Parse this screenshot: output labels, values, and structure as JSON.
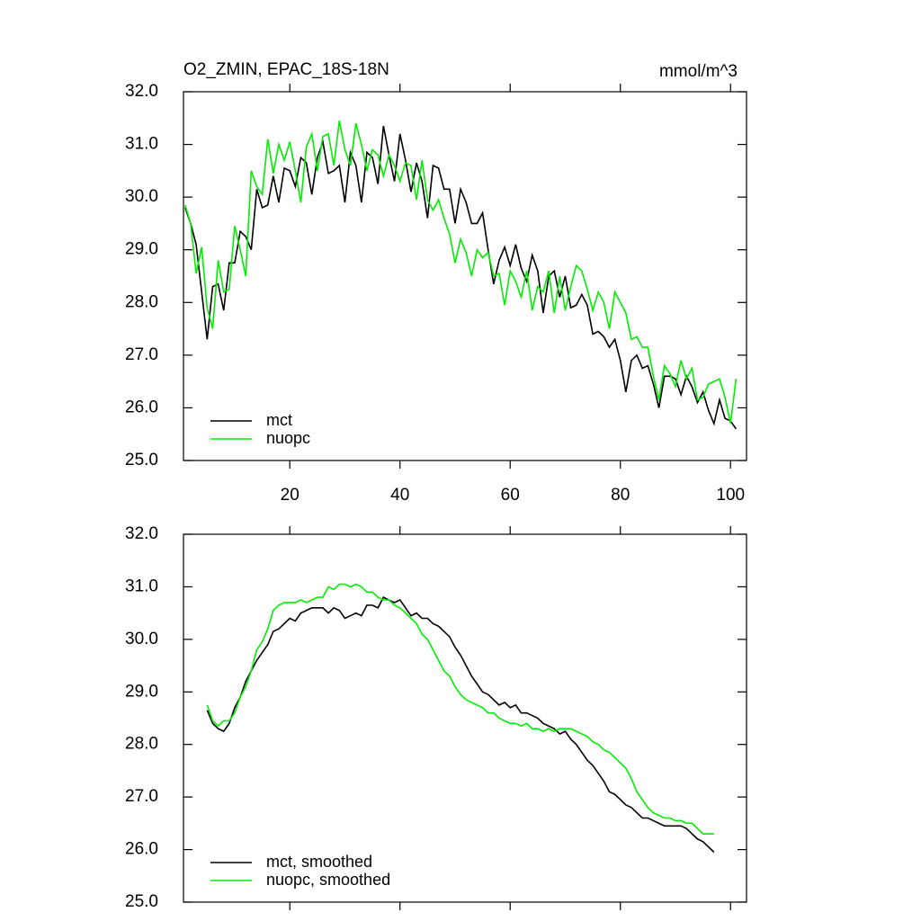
{
  "chart_data": [
    {
      "type": "line",
      "title": "O2_ZMIN, EPAC_18S-18N",
      "subtitle": "mmol/m^3",
      "x": [
        1,
        2,
        3,
        4,
        5,
        6,
        7,
        8,
        9,
        10,
        11,
        12,
        13,
        14,
        15,
        16,
        17,
        18,
        19,
        20,
        21,
        22,
        23,
        24,
        25,
        26,
        27,
        28,
        29,
        30,
        31,
        32,
        33,
        34,
        35,
        36,
        37,
        38,
        39,
        40,
        41,
        42,
        43,
        44,
        45,
        46,
        47,
        48,
        49,
        50,
        51,
        52,
        53,
        54,
        55,
        56,
        57,
        58,
        59,
        60,
        61,
        62,
        63,
        64,
        65,
        66,
        67,
        68,
        69,
        70,
        71,
        72,
        73,
        74,
        75,
        76,
        77,
        78,
        79,
        80,
        81,
        82,
        83,
        84,
        85,
        86,
        87,
        88,
        89,
        90,
        91,
        92,
        93,
        94,
        95,
        96,
        97,
        98,
        99,
        100,
        101
      ],
      "series": [
        {
          "name": "mct",
          "color": "#000000",
          "values": [
            29.8,
            29.5,
            29.1,
            28.2,
            27.3,
            28.3,
            28.35,
            27.85,
            28.75,
            28.75,
            29.35,
            29.25,
            29.0,
            30.15,
            29.8,
            29.85,
            30.4,
            29.9,
            30.55,
            30.5,
            30.2,
            30.75,
            30.65,
            30.05,
            30.75,
            31.05,
            30.45,
            30.5,
            30.6,
            29.9,
            30.85,
            30.6,
            29.9,
            30.85,
            30.75,
            30.25,
            31.35,
            30.8,
            30.3,
            31.2,
            30.7,
            30.1,
            30.65,
            30.3,
            29.6,
            30.6,
            30.55,
            30.15,
            30.15,
            29.5,
            30.15,
            29.9,
            29.5,
            29.5,
            29.7,
            29.0,
            28.35,
            28.8,
            29.05,
            28.7,
            29.1,
            28.65,
            28.4,
            28.9,
            28.6,
            27.8,
            28.5,
            28.6,
            28.1,
            28.5,
            27.9,
            27.95,
            28.15,
            27.95,
            27.4,
            27.45,
            27.35,
            27.15,
            27.3,
            26.9,
            26.3,
            26.9,
            27.0,
            26.75,
            26.8,
            26.45,
            26.0,
            26.6,
            26.6,
            26.55,
            26.25,
            26.6,
            26.4,
            26.1,
            26.3,
            25.95,
            25.7,
            26.15,
            25.8,
            25.75,
            25.6
          ]
        },
        {
          "name": "nuopc",
          "color": "#00ee00",
          "values": [
            29.85,
            29.5,
            28.55,
            29.05,
            27.9,
            27.5,
            28.8,
            28.2,
            28.25,
            29.45,
            29.0,
            28.5,
            30.5,
            30.2,
            30.05,
            31.1,
            30.45,
            31.0,
            30.7,
            31.05,
            30.5,
            29.9,
            30.95,
            31.2,
            30.5,
            31.15,
            31.2,
            30.6,
            31.45,
            30.9,
            30.6,
            31.4,
            31.0,
            30.5,
            30.9,
            30.8,
            30.4,
            30.8,
            30.6,
            30.3,
            30.65,
            30.6,
            29.95,
            30.7,
            29.95,
            29.75,
            29.95,
            29.6,
            29.3,
            28.75,
            29.2,
            28.95,
            28.5,
            29.0,
            28.85,
            28.95,
            28.5,
            28.55,
            27.95,
            28.6,
            28.4,
            28.1,
            28.6,
            27.85,
            28.3,
            28.2,
            28.6,
            27.8,
            28.5,
            27.85,
            28.3,
            28.7,
            28.6,
            28.25,
            27.85,
            28.2,
            28.0,
            27.5,
            28.2,
            28.0,
            27.8,
            27.3,
            27.35,
            27.15,
            27.15,
            26.6,
            26.15,
            26.8,
            26.65,
            26.4,
            26.9,
            26.55,
            26.75,
            26.15,
            26.2,
            26.45,
            26.5,
            26.55,
            26.2,
            25.7,
            26.55
          ]
        }
      ],
      "xlim": [
        0.7,
        102.9
      ],
      "xticks": [
        20,
        40,
        60,
        80,
        100
      ],
      "ylim": [
        25,
        32
      ],
      "yticks": [
        {
          "value": 25,
          "label": "25.0"
        },
        {
          "value": 26,
          "label": "26.0"
        },
        {
          "value": 27,
          "label": "27.0"
        },
        {
          "value": 28,
          "label": "28.0"
        },
        {
          "value": 29,
          "label": "29.0"
        },
        {
          "value": 30,
          "label": "30.0"
        },
        {
          "value": 31,
          "label": "31.0"
        },
        {
          "value": 32,
          "label": "32.0"
        }
      ],
      "legend": "lower left"
    },
    {
      "type": "line",
      "x": [
        1,
        2,
        3,
        4,
        5,
        6,
        7,
        8,
        9,
        10,
        11,
        12,
        13,
        14,
        15,
        16,
        17,
        18,
        19,
        20,
        21,
        22,
        23,
        24,
        25,
        26,
        27,
        28,
        29,
        30,
        31,
        32,
        33,
        34,
        35,
        36,
        37,
        38,
        39,
        40,
        41,
        42,
        43,
        44,
        45,
        46,
        47,
        48,
        49,
        50,
        51,
        52,
        53,
        54,
        55,
        56,
        57,
        58,
        59,
        60,
        61,
        62,
        63,
        64,
        65,
        66,
        67,
        68,
        69,
        70,
        71,
        72,
        73,
        74,
        75,
        76,
        77,
        78,
        79,
        80,
        81,
        82,
        83,
        84,
        85,
        86,
        87,
        88,
        89,
        90,
        91,
        92,
        93,
        94,
        95,
        96,
        97,
        98,
        99,
        100,
        101
      ],
      "series": [
        {
          "name": "mct, smoothed",
          "color": "#000000",
          "values": [
            null,
            null,
            null,
            null,
            28.65,
            28.4,
            28.3,
            28.25,
            28.4,
            28.7,
            28.9,
            29.2,
            29.4,
            29.6,
            29.75,
            29.9,
            30.15,
            30.2,
            30.3,
            30.4,
            30.35,
            30.5,
            30.55,
            30.6,
            30.6,
            30.6,
            30.5,
            30.6,
            30.55,
            30.4,
            30.45,
            30.5,
            30.45,
            30.65,
            30.65,
            30.6,
            30.8,
            30.75,
            30.7,
            30.75,
            30.6,
            30.45,
            30.5,
            30.4,
            30.4,
            30.3,
            30.25,
            30.15,
            30.05,
            29.85,
            29.7,
            29.5,
            29.3,
            29.15,
            29.0,
            28.95,
            28.85,
            28.75,
            28.8,
            28.7,
            28.75,
            28.6,
            28.6,
            28.55,
            28.5,
            28.4,
            28.35,
            28.3,
            28.2,
            28.25,
            28.1,
            28.0,
            27.85,
            27.7,
            27.6,
            27.45,
            27.3,
            27.1,
            27.05,
            26.95,
            26.85,
            26.8,
            26.7,
            26.6,
            26.6,
            26.55,
            26.5,
            26.45,
            26.45,
            26.45,
            26.45,
            26.4,
            26.3,
            26.2,
            26.15,
            26.05,
            25.95,
            null,
            null,
            null,
            null
          ]
        },
        {
          "name": "nuopc, smoothed",
          "color": "#00ee00",
          "values": [
            null,
            null,
            null,
            null,
            28.75,
            28.45,
            28.35,
            28.45,
            28.45,
            28.6,
            28.9,
            29.1,
            29.4,
            29.8,
            29.95,
            30.2,
            30.55,
            30.65,
            30.7,
            30.7,
            30.7,
            30.75,
            30.7,
            30.75,
            30.8,
            30.8,
            31.0,
            30.95,
            31.05,
            31.05,
            31.0,
            31.05,
            31.0,
            30.9,
            30.9,
            30.8,
            30.75,
            30.75,
            30.65,
            30.6,
            30.5,
            30.4,
            30.3,
            30.1,
            30.0,
            29.8,
            29.6,
            29.4,
            29.3,
            29.1,
            28.95,
            28.85,
            28.8,
            28.75,
            28.7,
            28.6,
            28.6,
            28.5,
            28.45,
            28.4,
            28.4,
            28.35,
            28.4,
            28.3,
            28.3,
            28.25,
            28.3,
            28.25,
            28.3,
            28.3,
            28.3,
            28.25,
            28.2,
            28.15,
            28.05,
            28.0,
            27.9,
            27.85,
            27.75,
            27.65,
            27.55,
            27.35,
            27.1,
            26.95,
            26.8,
            26.7,
            26.65,
            26.6,
            26.6,
            26.55,
            26.55,
            26.5,
            26.5,
            26.4,
            26.3,
            26.3,
            26.3,
            null,
            null,
            null,
            null
          ]
        }
      ],
      "xlim": [
        0.7,
        102.9
      ],
      "xticks": [
        20,
        40,
        60,
        80,
        100
      ],
      "ylim": [
        25,
        32
      ],
      "yticks": [
        {
          "value": 25,
          "label": "25.0"
        },
        {
          "value": 26,
          "label": "26.0"
        },
        {
          "value": 27,
          "label": "27.0"
        },
        {
          "value": 28,
          "label": "28.0"
        },
        {
          "value": 29,
          "label": "29.0"
        },
        {
          "value": 30,
          "label": "30.0"
        },
        {
          "value": 31,
          "label": "31.0"
        },
        {
          "value": 32,
          "label": "32.0"
        }
      ],
      "legend": "lower left"
    }
  ]
}
